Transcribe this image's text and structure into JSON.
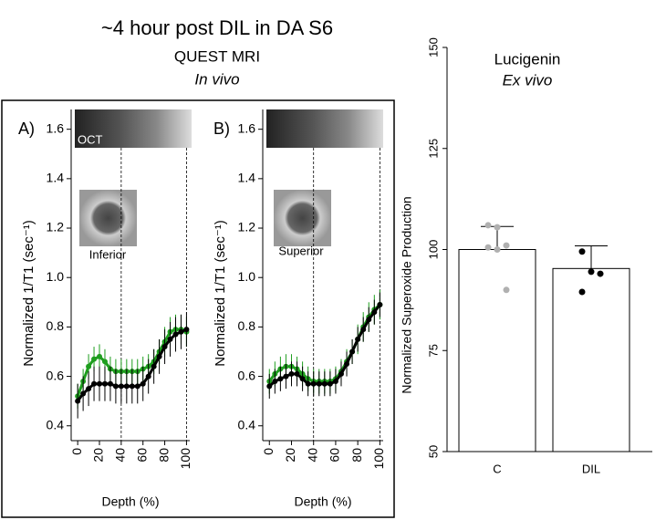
{
  "header": {
    "title": "~4 hour post DIL in DA S6",
    "subtitle": "QUEST MRI",
    "note": "In vivo"
  },
  "chart_data": [
    {
      "type": "line",
      "panel_label": "A)",
      "image_label": "OCT",
      "inset_label": "Inferior",
      "xlabel": "Depth (%)",
      "ylabel": "Normalized 1/T1 (sec⁻¹)",
      "x": [
        0,
        5,
        10,
        15,
        20,
        25,
        30,
        35,
        40,
        45,
        50,
        55,
        60,
        65,
        70,
        75,
        80,
        85,
        90,
        95,
        100
      ],
      "series": [
        {
          "color": "#1e9e1e",
          "values": [
            0.52,
            0.58,
            0.64,
            0.67,
            0.68,
            0.66,
            0.63,
            0.62,
            0.62,
            0.62,
            0.62,
            0.62,
            0.63,
            0.64,
            0.66,
            0.7,
            0.74,
            0.78,
            0.79,
            0.79,
            0.78
          ],
          "errors": [
            0.05,
            0.05,
            0.05,
            0.05,
            0.05,
            0.05,
            0.05,
            0.05,
            0.05,
            0.05,
            0.05,
            0.05,
            0.05,
            0.05,
            0.05,
            0.05,
            0.06,
            0.06,
            0.06,
            0.06,
            0.06
          ]
        },
        {
          "color": "#000000",
          "values": [
            0.5,
            0.53,
            0.55,
            0.57,
            0.57,
            0.57,
            0.57,
            0.56,
            0.56,
            0.56,
            0.56,
            0.56,
            0.57,
            0.6,
            0.64,
            0.68,
            0.72,
            0.75,
            0.77,
            0.78,
            0.79
          ],
          "errors": [
            0.07,
            0.07,
            0.07,
            0.07,
            0.07,
            0.07,
            0.07,
            0.07,
            0.07,
            0.07,
            0.07,
            0.07,
            0.07,
            0.07,
            0.07,
            0.07,
            0.07,
            0.07,
            0.07,
            0.07,
            0.07
          ]
        }
      ],
      "vlines": [
        40,
        100
      ],
      "xlim": [
        -6,
        103
      ],
      "xticks": [
        0,
        20,
        40,
        60,
        80,
        100
      ],
      "ylim": [
        0.34,
        1.68
      ],
      "yticks": [
        0.4,
        0.6,
        0.8,
        {
          "value": 1,
          "label": "1.0"
        },
        1.2,
        1.4,
        1.6
      ]
    },
    {
      "type": "line",
      "panel_label": "B)",
      "inset_label": "Superior",
      "xlabel": "Depth (%)",
      "ylabel": "Normalized 1/T1 (sec⁻¹)",
      "x": [
        0,
        5,
        10,
        15,
        20,
        25,
        30,
        35,
        40,
        45,
        50,
        55,
        60,
        65,
        70,
        75,
        80,
        85,
        90,
        95,
        100
      ],
      "series": [
        {
          "color": "#1e9e1e",
          "values": [
            0.58,
            0.61,
            0.63,
            0.64,
            0.64,
            0.63,
            0.61,
            0.59,
            0.58,
            0.58,
            0.58,
            0.58,
            0.59,
            0.62,
            0.66,
            0.7,
            0.75,
            0.8,
            0.84,
            0.87,
            0.89
          ],
          "errors": [
            0.05,
            0.05,
            0.05,
            0.05,
            0.05,
            0.05,
            0.05,
            0.05,
            0.05,
            0.05,
            0.05,
            0.05,
            0.05,
            0.05,
            0.05,
            0.05,
            0.06,
            0.06,
            0.06,
            0.06,
            0.06
          ]
        },
        {
          "color": "#000000",
          "values": [
            0.56,
            0.58,
            0.59,
            0.6,
            0.61,
            0.61,
            0.59,
            0.57,
            0.57,
            0.57,
            0.57,
            0.57,
            0.58,
            0.61,
            0.65,
            0.7,
            0.75,
            0.79,
            0.83,
            0.86,
            0.89
          ],
          "errors": [
            0.05,
            0.05,
            0.05,
            0.05,
            0.05,
            0.05,
            0.05,
            0.05,
            0.05,
            0.05,
            0.05,
            0.05,
            0.05,
            0.05,
            0.05,
            0.05,
            0.05,
            0.05,
            0.05,
            0.05,
            0.05
          ]
        }
      ],
      "vlines": [
        40,
        100
      ],
      "xlim": [
        -6,
        103
      ],
      "xticks": [
        0,
        20,
        40,
        60,
        80,
        100
      ],
      "ylim": [
        0.34,
        1.68
      ],
      "yticks": [
        0.4,
        0.6,
        0.8,
        {
          "value": 1,
          "label": "1.0"
        },
        1.2,
        1.4,
        1.6
      ]
    },
    {
      "type": "bar",
      "title": "Lucigenin",
      "subtitle": "Ex vivo",
      "ylabel": "Normalized Superoxide Production",
      "categories": [
        "C",
        "DIL"
      ],
      "values": [
        100,
        95.3
      ],
      "errors": [
        5.7,
        5.6
      ],
      "points": [
        [
          106,
          105.5,
          101,
          100.5,
          100,
          90
        ],
        [
          99.5,
          94.5,
          94,
          89.5
        ]
      ],
      "point_colors": [
        "#b0b0b0",
        "#000000"
      ],
      "ylim": [
        50,
        150
      ],
      "yticks": [
        50,
        75,
        100,
        125,
        150
      ]
    }
  ]
}
